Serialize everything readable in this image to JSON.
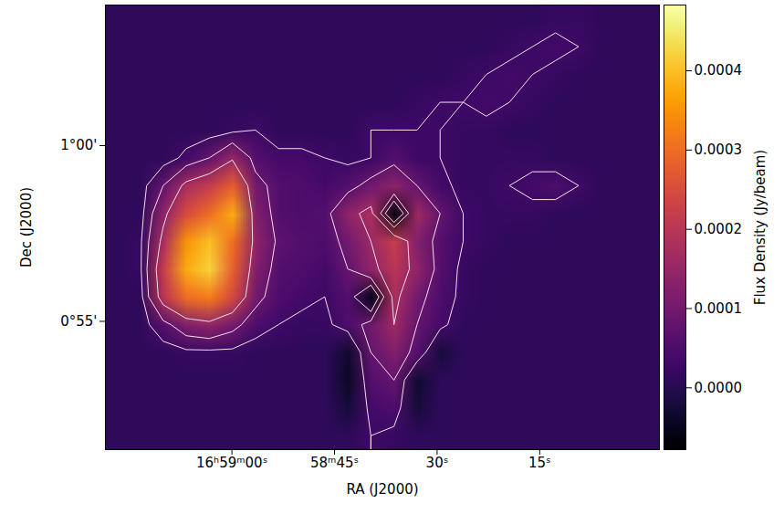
{
  "chart_data": {
    "type": "heatmap",
    "x_label": "RA (J2000)",
    "y_label": "Dec (J2000)",
    "xlim": [
      3558.5,
      3477.5
    ],
    "ylim": [
      51.35,
      64.0
    ],
    "xticks": [
      {
        "value": 3540,
        "label": "16ʰ59ᵐ00ˢ"
      },
      {
        "value": 3525,
        "label": "58ᵐ45ˢ"
      },
      {
        "value": 3510,
        "label": "30ˢ"
      },
      {
        "value": 3495,
        "label": "15ˢ"
      }
    ],
    "yticks": [
      {
        "value": 55,
        "label": "0°55'"
      },
      {
        "value": 60,
        "label": "1°00'"
      }
    ],
    "color": "inferno",
    "cells": [
      [
        1e-05,
        1e-05,
        1e-05,
        1e-05,
        1e-05,
        1e-05,
        1e-05,
        1e-05,
        1e-05,
        1e-05,
        1e-05,
        1e-05,
        1e-05,
        1e-05,
        1e-05,
        1e-05,
        1e-05,
        1e-05,
        1e-05,
        2e-05,
        2e-05,
        1e-05,
        1e-05,
        1e-05
      ],
      [
        1e-05,
        1e-05,
        1e-05,
        1e-05,
        1e-05,
        1e-05,
        1e-05,
        1e-05,
        1e-05,
        1e-05,
        1e-05,
        1e-05,
        1e-05,
        1e-05,
        1e-05,
        1e-05,
        1e-05,
        2e-05,
        3e-05,
        4e-05,
        3e-05,
        1e-05,
        1e-05,
        1e-05
      ],
      [
        1e-05,
        1e-05,
        1e-05,
        1e-05,
        1e-05,
        1e-05,
        1e-05,
        1e-05,
        1e-05,
        1e-05,
        1e-05,
        1e-05,
        1e-05,
        1e-05,
        1e-05,
        2e-05,
        3e-05,
        4e-05,
        3e-05,
        2e-05,
        1e-05,
        1e-05,
        1e-05,
        1e-05
      ],
      [
        1e-05,
        1e-05,
        1e-05,
        1e-05,
        1e-05,
        1e-05,
        1e-05,
        1e-05,
        1e-05,
        1e-05,
        1e-05,
        1e-05,
        1e-05,
        2e-05,
        3e-05,
        3e-05,
        4e-05,
        3e-05,
        2e-05,
        1e-05,
        1e-05,
        1e-05,
        1e-05,
        1e-05
      ],
      [
        1e-05,
        1e-05,
        1e-05,
        1e-05,
        1e-05,
        2e-05,
        3e-05,
        1e-05,
        1e-05,
        1e-05,
        1e-05,
        3e-05,
        3e-05,
        3e-05,
        3e-05,
        2e-05,
        2e-05,
        1e-05,
        1e-05,
        1e-05,
        1e-05,
        1e-05,
        1e-05,
        1e-05
      ],
      [
        1e-05,
        1e-05,
        1e-05,
        4e-05,
        8e-05,
        0.00015,
        6e-05,
        4e-05,
        4e-05,
        3e-05,
        2e-05,
        3e-05,
        6e-05,
        3e-05,
        3e-05,
        2e-05,
        2e-05,
        2e-05,
        2e-05,
        1e-05,
        1e-05,
        1e-05,
        1e-05,
        1e-05
      ],
      [
        1e-05,
        1e-05,
        8e-05,
        0.00018,
        0.00022,
        0.00028,
        0.0001,
        6e-05,
        5e-05,
        4e-05,
        6e-05,
        0.0001,
        0.00014,
        8e-05,
        4e-05,
        2e-05,
        2e-05,
        3e-05,
        4e-05,
        5e-05,
        3e-05,
        1e-05,
        1e-05,
        1e-05
      ],
      [
        1e-05,
        1e-05,
        0.00014,
        0.00025,
        0.0003,
        0.00038,
        0.00012,
        6e-05,
        5e-05,
        6e-05,
        0.00014,
        0.00018,
        -6e-05,
        0.00016,
        8e-05,
        3e-05,
        2e-05,
        2e-05,
        2e-05,
        1e-05,
        1e-05,
        1e-05,
        1e-05,
        1e-05
      ],
      [
        1e-05,
        2e-05,
        0.00018,
        0.00035,
        0.0004,
        0.0003,
        0.00014,
        7e-05,
        6e-05,
        5e-05,
        0.0001,
        0.00016,
        0.00022,
        0.00012,
        6e-05,
        3e-05,
        2e-05,
        1e-05,
        1e-05,
        1e-05,
        1e-05,
        1e-05,
        1e-05,
        1e-05
      ],
      [
        1e-05,
        2e-05,
        0.00022,
        0.00038,
        0.00042,
        0.00028,
        0.00012,
        6e-05,
        5e-05,
        4e-05,
        8e-05,
        0.00014,
        0.0002,
        0.00014,
        6e-05,
        2e-05,
        1e-05,
        1e-05,
        1e-05,
        1e-05,
        1e-05,
        1e-05,
        1e-05,
        1e-05
      ],
      [
        1e-05,
        1e-05,
        0.0002,
        0.0003,
        0.00032,
        0.00024,
        0.0001,
        5e-05,
        4e-05,
        3e-05,
        6e-05,
        -5e-05,
        0.00018,
        0.0001,
        5e-05,
        2e-05,
        1e-05,
        1e-05,
        1e-05,
        1e-05,
        1e-05,
        1e-05,
        1e-05,
        1e-05
      ],
      [
        1e-05,
        1e-05,
        6e-05,
        0.00012,
        0.00014,
        0.0001,
        5e-05,
        3e-05,
        2e-05,
        2e-05,
        5e-05,
        0.0001,
        0.00016,
        8e-05,
        4e-05,
        1e-05,
        1e-05,
        1e-05,
        1e-05,
        1e-05,
        1e-05,
        1e-05,
        1e-05,
        1e-05
      ],
      [
        1e-05,
        1e-05,
        1e-05,
        2e-05,
        2e-05,
        2e-05,
        1e-05,
        1e-05,
        1e-05,
        1e-05,
        -3e-05,
        8e-05,
        0.00012,
        6e-05,
        -2e-05,
        1e-05,
        1e-05,
        1e-05,
        1e-05,
        1e-05,
        1e-05,
        1e-05,
        1e-05,
        1e-05
      ],
      [
        1e-05,
        1e-05,
        1e-05,
        1e-05,
        1e-05,
        1e-05,
        1e-05,
        1e-05,
        1e-05,
        1e-05,
        -4e-05,
        6e-05,
        8e-05,
        -3e-05,
        1e-05,
        1e-05,
        1e-05,
        1e-05,
        1e-05,
        1e-05,
        1e-05,
        1e-05,
        1e-05,
        1e-05
      ],
      [
        1e-05,
        1e-05,
        1e-05,
        1e-05,
        1e-05,
        1e-05,
        1e-05,
        1e-05,
        1e-05,
        1e-05,
        -2e-05,
        4e-05,
        5e-05,
        -2e-05,
        1e-05,
        1e-05,
        1e-05,
        1e-05,
        1e-05,
        1e-05,
        1e-05,
        1e-05,
        1e-05,
        1e-05
      ],
      [
        1e-05,
        1e-05,
        1e-05,
        1e-05,
        1e-05,
        1e-05,
        1e-05,
        1e-05,
        1e-05,
        1e-05,
        1e-05,
        3e-05,
        2e-05,
        1e-05,
        1e-05,
        1e-05,
        1e-05,
        1e-05,
        1e-05,
        1e-05,
        1e-05,
        1e-05,
        1e-05,
        1e-05
      ]
    ],
    "contour_levels": [
      3e-05,
      8e-05,
      0.00016
    ],
    "colorbar": {
      "label": "Flux Density (Jy/beam)",
      "range": [
        -7.8e-05,
        0.000483
      ],
      "ticks": [
        {
          "value": 0,
          "label": "0.0000"
        },
        {
          "value": 0.0001,
          "label": "0.0001"
        },
        {
          "value": 0.0002,
          "label": "0.0002"
        },
        {
          "value": 0.0003,
          "label": "0.0003"
        },
        {
          "value": 0.0004,
          "label": "0.0004"
        }
      ]
    }
  }
}
